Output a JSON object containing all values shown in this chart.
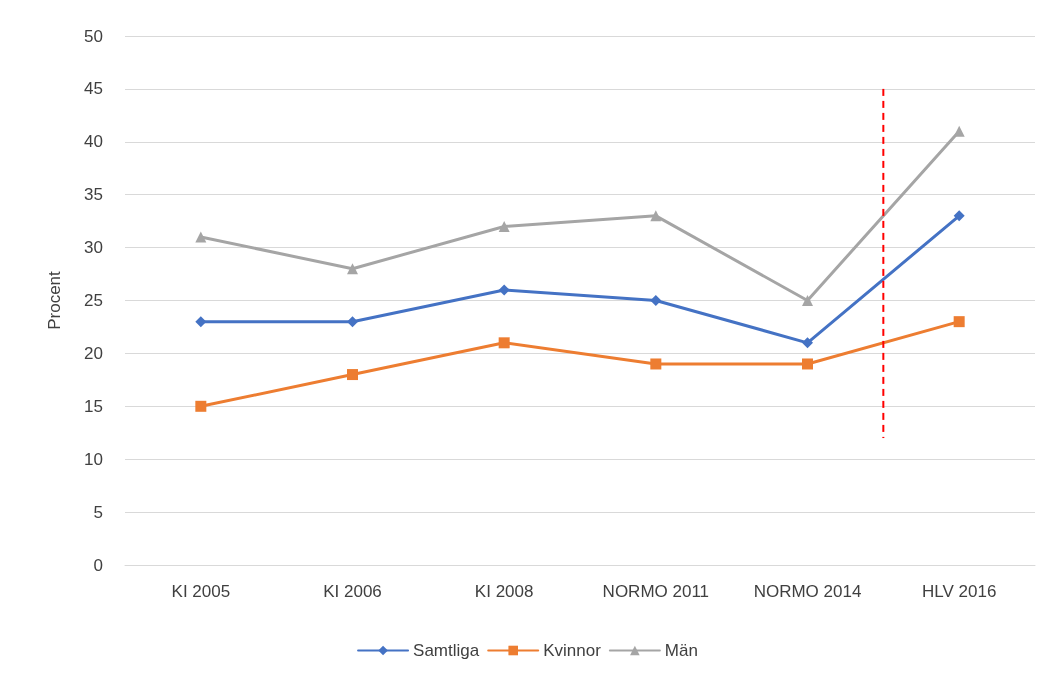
{
  "chart_data": {
    "type": "line",
    "ylabel": "Procent",
    "categories": [
      "KI 2005",
      "KI 2006",
      "KI 2008",
      "NORMO 2011",
      "NORMO 2014",
      "HLV 2016"
    ],
    "series": [
      {
        "name": "Samtliga",
        "color": "#4472c4",
        "marker": "diamond",
        "values": [
          23,
          23,
          26,
          25,
          21,
          33
        ]
      },
      {
        "name": "Kvinnor",
        "color": "#ed7d31",
        "marker": "square",
        "values": [
          15,
          18,
          21,
          19,
          19,
          23
        ]
      },
      {
        "name": "Män",
        "color": "#a5a5a5",
        "marker": "triangle",
        "values": [
          31,
          28,
          32,
          33,
          25,
          41
        ]
      }
    ],
    "ylim": [
      0,
      50
    ],
    "yticks": [
      0,
      5,
      10,
      15,
      20,
      25,
      30,
      35,
      40,
      45,
      50
    ],
    "grid": "y",
    "legend": "bottom",
    "line_style": "solid"
  }
}
